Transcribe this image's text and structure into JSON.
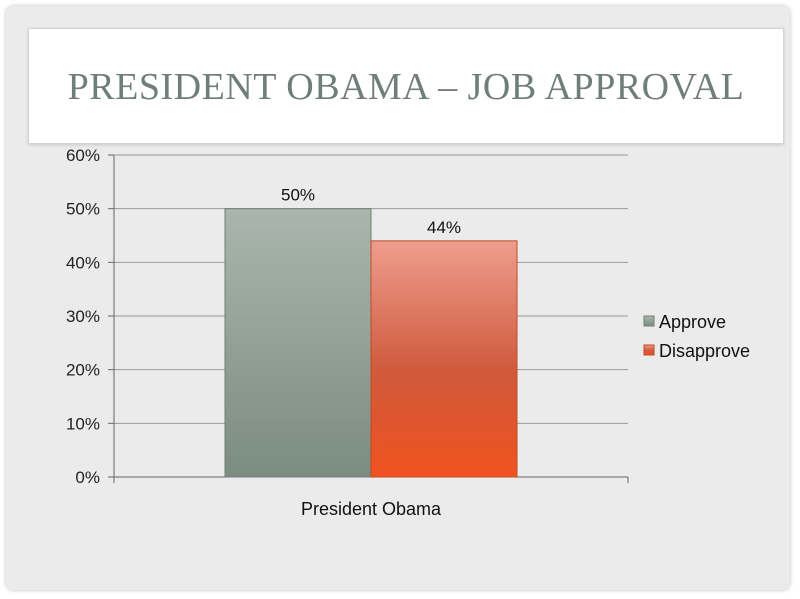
{
  "slide": {
    "title": "PRESIDENT OBAMA – JOB APPROVAL"
  },
  "chart_data": {
    "type": "bar",
    "title": "",
    "categories": [
      "President Obama"
    ],
    "series": [
      {
        "name": "Approve",
        "values": [
          50
        ],
        "color": "#7f9184",
        "label": "50%"
      },
      {
        "name": "Disapprove",
        "values": [
          44
        ],
        "color": "#d9562b",
        "label": "44%"
      }
    ],
    "ylim": [
      0,
      60
    ],
    "yticks": [
      "0%",
      "10%",
      "20%",
      "30%",
      "40%",
      "50%",
      "60%"
    ],
    "ytick_values": [
      0,
      10,
      20,
      30,
      40,
      50,
      60
    ],
    "grid": true,
    "legend_position": "right"
  }
}
